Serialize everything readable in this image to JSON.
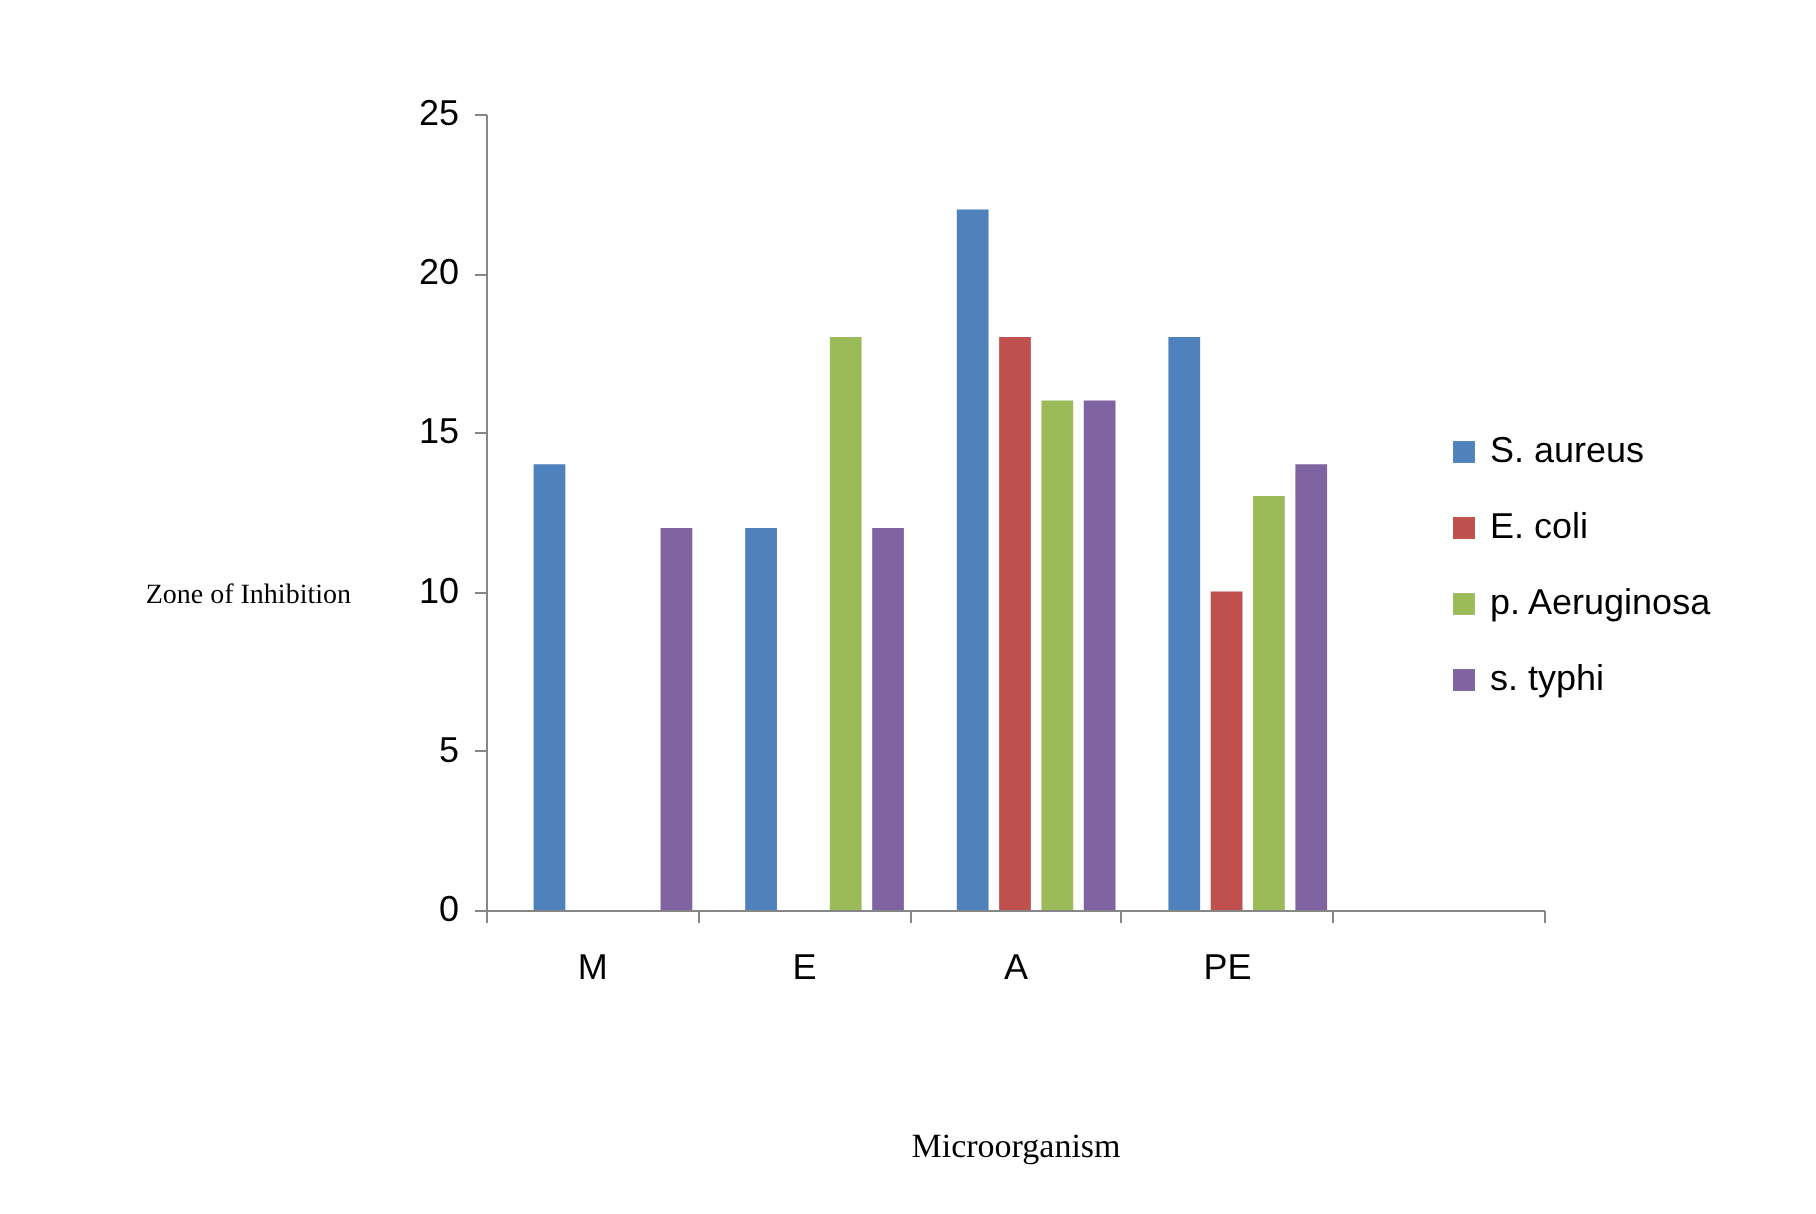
{
  "chart_data": {
    "type": "bar",
    "xlabel": "Microorganism",
    "ylabel": "Zone of Inhibition",
    "categories": [
      "M",
      "E",
      "A",
      "PE",
      null
    ],
    "series": [
      {
        "name": "S. aureus",
        "color": "#4f81bd",
        "values": [
          14,
          12,
          22,
          18,
          null
        ]
      },
      {
        "name": "E. coli",
        "color": "#c0504d",
        "values": [
          null,
          null,
          18,
          10,
          null
        ]
      },
      {
        "name": "p. Aeruginosa",
        "color": "#9bbb59",
        "values": [
          null,
          18,
          16,
          13,
          null
        ]
      },
      {
        "name": "s. typhi",
        "color": "#8064a2",
        "values": [
          12,
          12,
          16,
          14,
          null
        ]
      }
    ],
    "ylim": [
      0,
      25
    ],
    "yticks": [
      0,
      5,
      10,
      15,
      20,
      25
    ],
    "grid": false,
    "legend": "right"
  }
}
